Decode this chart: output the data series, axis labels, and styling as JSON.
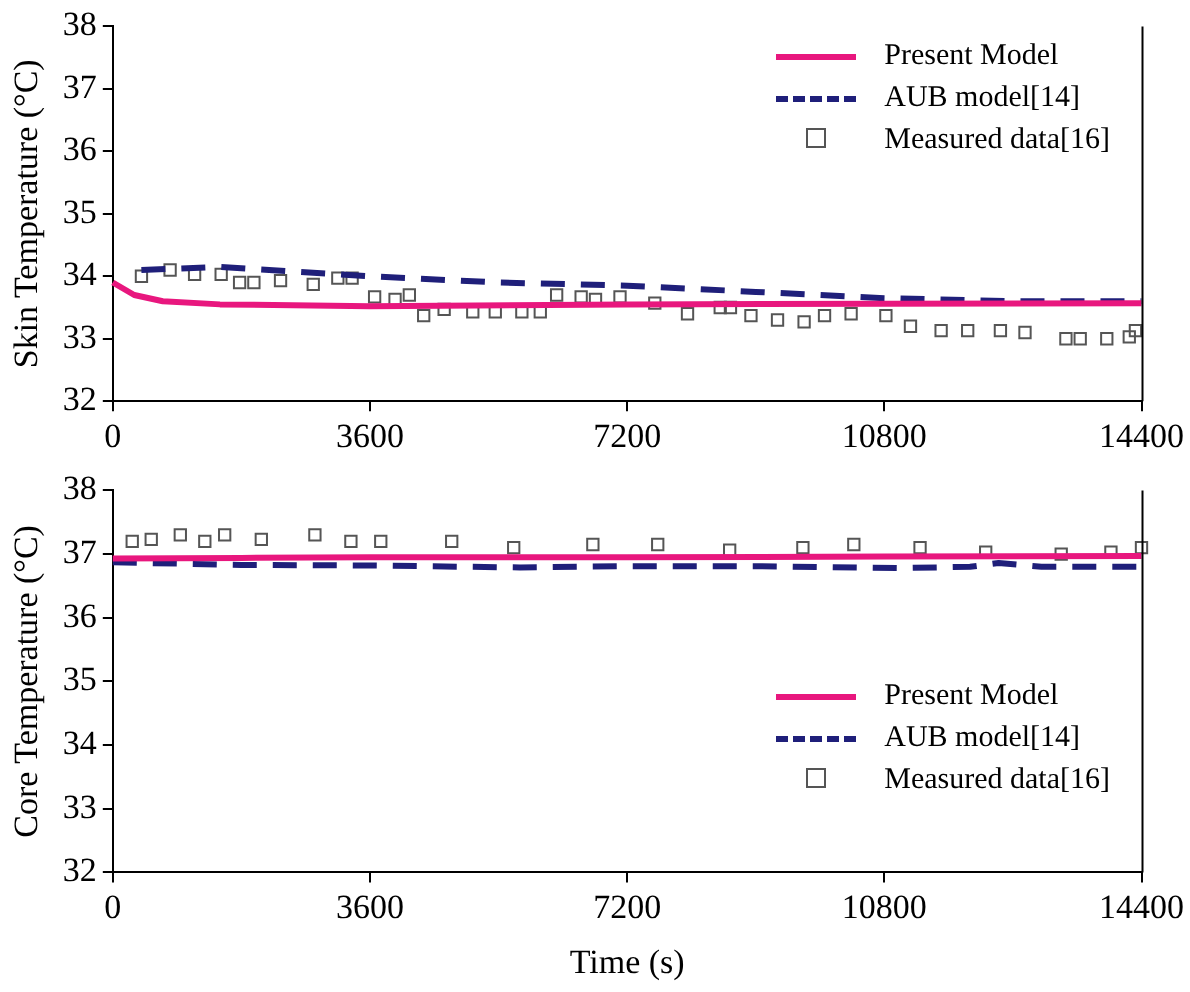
{
  "chart_data": [
    {
      "type": "line",
      "ylabel": "Skin Temperature (°C)",
      "xlim": [
        0,
        14400
      ],
      "xticks": [
        0,
        3600,
        7200,
        10800,
        14400
      ],
      "ylim": [
        32,
        38
      ],
      "yticks": [
        32,
        33,
        34,
        35,
        36,
        37,
        38
      ],
      "grid": false,
      "legend": "top right",
      "series": [
        {
          "name": "Present Model",
          "type": "line",
          "color": "#e8177e",
          "line_style": "solid",
          "marker": "none",
          "x": [
            0,
            300,
            700,
            1500,
            3600,
            7200,
            10800,
            14400
          ],
          "values": [
            33.9,
            33.7,
            33.6,
            33.55,
            33.52,
            33.55,
            33.56,
            33.57
          ]
        },
        {
          "name": "AUB model[14]",
          "type": "line",
          "color": "#1f1f7a",
          "line_style": "dashed",
          "marker": "none",
          "x": [
            400,
            1500,
            3600,
            5400,
            7200,
            9000,
            10800,
            12600,
            14400
          ],
          "values": [
            34.1,
            34.15,
            34.0,
            33.9,
            33.85,
            33.75,
            33.65,
            33.6,
            33.6
          ]
        },
        {
          "name": "Measured data[16]",
          "type": "scatter",
          "color": "#555555",
          "marker": "square",
          "x": [
            401,
            802,
            1145,
            1517,
            1775,
            1975,
            2348,
            2806,
            3150,
            3350,
            3665,
            3951,
            4151,
            4352,
            4638,
            5039,
            5354,
            5726,
            5984,
            6213,
            6556,
            6757,
            7100,
            7587,
            8045,
            8503,
            8646,
            8933,
            9305,
            9677,
            9963,
            10335,
            10822,
            11166,
            11595,
            11967,
            12425,
            12769,
            13342,
            13542,
            13914,
            14229,
            14315
          ],
          "values": [
            34.0,
            34.1,
            34.03,
            34.03,
            33.9,
            33.9,
            33.93,
            33.87,
            33.97,
            33.97,
            33.67,
            33.63,
            33.7,
            33.37,
            33.47,
            33.43,
            33.43,
            33.43,
            33.43,
            33.7,
            33.67,
            33.63,
            33.67,
            33.57,
            33.4,
            33.5,
            33.5,
            33.37,
            33.3,
            33.27,
            33.37,
            33.4,
            33.37,
            33.2,
            33.13,
            33.13,
            33.13,
            33.1,
            33.0,
            33.0,
            33.0,
            33.03,
            33.13
          ]
        }
      ]
    },
    {
      "type": "line",
      "xlabel": "Time (s)",
      "ylabel": "Core Temperature (°C)",
      "xlim": [
        0,
        14400
      ],
      "xticks": [
        0,
        3600,
        7200,
        10800,
        14400
      ],
      "ylim": [
        32,
        38
      ],
      "yticks": [
        32,
        33,
        34,
        35,
        36,
        37,
        38
      ],
      "grid": false,
      "legend": "bottom right",
      "series": [
        {
          "name": "Present Model",
          "type": "line",
          "color": "#e8177e",
          "line_style": "solid",
          "marker": "none",
          "x": [
            0,
            1800,
            3600,
            7200,
            10800,
            14400
          ],
          "values": [
            36.93,
            36.94,
            36.95,
            36.95,
            36.96,
            36.97
          ]
        },
        {
          "name": "AUB model[14]",
          "type": "line",
          "color": "#1f1f7a",
          "line_style": "dashed",
          "marker": "none",
          "x": [
            0,
            1800,
            3600,
            5700,
            7200,
            9000,
            11000,
            12000,
            12400,
            13000,
            14400
          ],
          "values": [
            36.87,
            36.83,
            36.82,
            36.79,
            36.81,
            36.81,
            36.78,
            36.8,
            36.86,
            36.8,
            36.8
          ]
        },
        {
          "name": "Measured data[16]",
          "type": "scatter",
          "color": "#555555",
          "marker": "square",
          "x": [
            272,
            538,
            945,
            1288,
            1566,
            2079,
            2829,
            3333,
            3751,
            4744,
            5612,
            6720,
            7628,
            8635,
            9660,
            10373,
            11300,
            12219,
            13276,
            13972,
            14400
          ],
          "values": [
            37.2,
            37.23,
            37.3,
            37.2,
            37.3,
            37.23,
            37.3,
            37.2,
            37.2,
            37.2,
            37.1,
            37.15,
            37.15,
            37.06,
            37.1,
            37.15,
            37.1,
            37.03,
            37.0,
            37.03,
            37.1
          ]
        }
      ]
    }
  ]
}
